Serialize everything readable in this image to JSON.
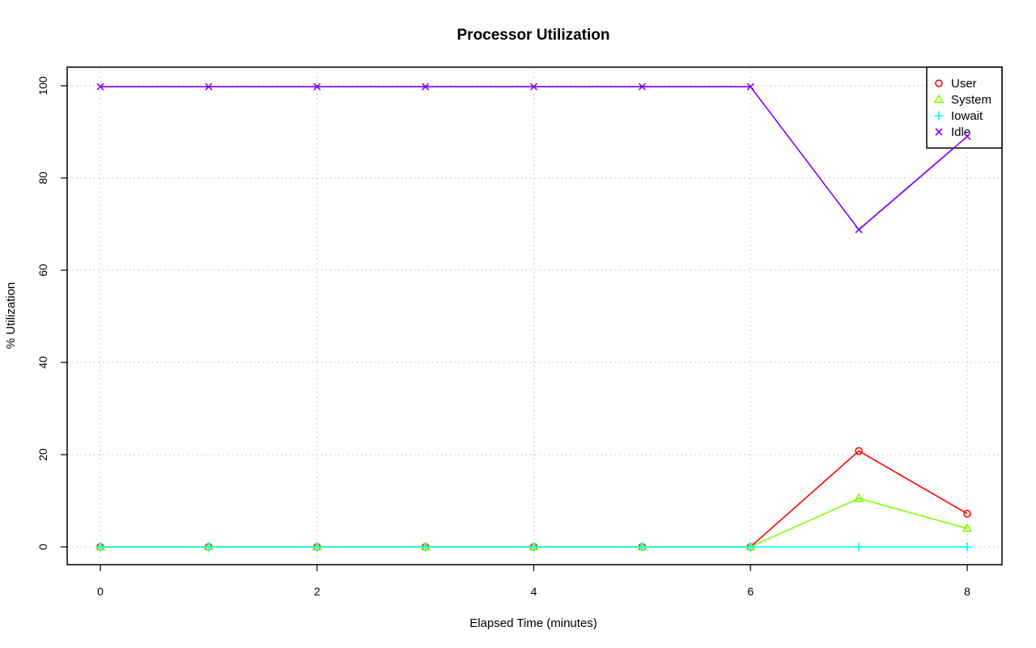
{
  "chart_data": {
    "type": "line",
    "title": "Processor Utilization",
    "xlabel": "Elapsed Time (minutes)",
    "ylabel": "% Utilization",
    "x": [
      0,
      1,
      2,
      3,
      4,
      5,
      6,
      7,
      8
    ],
    "xlim": [
      0,
      8
    ],
    "ylim": [
      0,
      100
    ],
    "x_ticks": [
      "0",
      "2",
      "4",
      "6",
      "8"
    ],
    "y_ticks": [
      "0",
      "20",
      "40",
      "60",
      "80",
      "100"
    ],
    "grid": true,
    "legend_position": "top-right",
    "series": [
      {
        "name": "User",
        "color": "#ff0000",
        "marker": "circle",
        "values": [
          0,
          0,
          0,
          0,
          0,
          0,
          0,
          20.8,
          7.2
        ]
      },
      {
        "name": "System",
        "color": "#80ff00",
        "marker": "triangle",
        "values": [
          0,
          0,
          0,
          0,
          0,
          0,
          0,
          10.5,
          4.0
        ]
      },
      {
        "name": "Iowait",
        "color": "#00ffff",
        "marker": "plus",
        "values": [
          0,
          0,
          0,
          0,
          0,
          0,
          0,
          0,
          0
        ]
      },
      {
        "name": "Idle",
        "color": "#8000ff",
        "marker": "cross",
        "values": [
          99.8,
          99.8,
          99.8,
          99.8,
          99.8,
          99.8,
          99.8,
          68.8,
          89.0
        ]
      }
    ]
  }
}
